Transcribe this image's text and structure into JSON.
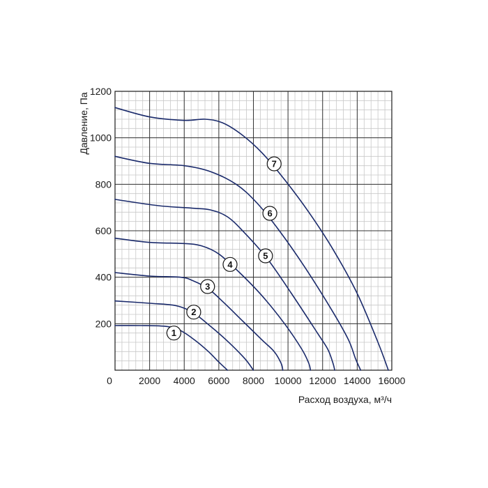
{
  "chart_data": {
    "type": "line",
    "title": "",
    "xlabel": "Расход воздуха, м³/ч",
    "ylabel": "Давление, Па",
    "xlim": [
      0,
      16000
    ],
    "ylim": [
      0,
      1200
    ],
    "x_ticks": [
      "0",
      "2000",
      "4000",
      "6000",
      "8000",
      "10000",
      "12000",
      "14000",
      "16000"
    ],
    "y_ticks": [
      "200",
      "400",
      "600",
      "800",
      "1000",
      "1200"
    ],
    "x_tick_values": [
      0,
      2000,
      4000,
      6000,
      8000,
      10000,
      12000,
      14000,
      16000
    ],
    "y_tick_values": [
      200,
      400,
      600,
      800,
      1000,
      1200
    ],
    "grid": true,
    "minor_grid": true,
    "legend": "none",
    "line_color": "#1a2a6b",
    "grid_major_color": "#333333",
    "grid_minor_color": "#c8c8c8",
    "series": [
      {
        "name": "1",
        "label_point": [
          3400,
          160
        ],
        "x": [
          0,
          1500,
          3000,
          3800,
          4600,
          5400,
          6000,
          6500
        ],
        "y": [
          192,
          192,
          188,
          170,
          130,
          80,
          35,
          0
        ]
      },
      {
        "name": "2",
        "label_point": [
          4550,
          250
        ],
        "x": [
          0,
          2000,
          3500,
          4500,
          5500,
          6500,
          7500,
          8000
        ],
        "y": [
          298,
          288,
          278,
          248,
          190,
          125,
          50,
          0
        ]
      },
      {
        "name": "3",
        "label_point": [
          5350,
          360
        ],
        "x": [
          0,
          2000,
          3800,
          4500,
          5400,
          6300,
          7400,
          8500,
          9200,
          9600,
          9700
        ],
        "y": [
          420,
          405,
          400,
          385,
          350,
          290,
          210,
          130,
          80,
          30,
          0
        ]
      },
      {
        "name": "4",
        "label_point": [
          6650,
          455
        ],
        "x": [
          0,
          2000,
          4000,
          5000,
          6000,
          7200,
          8500,
          9800,
          10800,
          11200,
          11300
        ],
        "y": [
          568,
          550,
          545,
          535,
          500,
          420,
          320,
          200,
          90,
          30,
          0
        ]
      },
      {
        "name": "5",
        "label_point": [
          8700,
          492
        ],
        "x": [
          0,
          2500,
          4500,
          5500,
          6500,
          7500,
          8800,
          10200,
          11700,
          12300,
          12600,
          12700
        ],
        "y": [
          735,
          708,
          697,
          690,
          660,
          590,
          480,
          330,
          160,
          90,
          30,
          0
        ]
      },
      {
        "name": "6",
        "label_point": [
          8950,
          675
        ],
        "x": [
          0,
          2000,
          4000,
          5500,
          7000,
          8200,
          9500,
          11000,
          12600,
          13500,
          13900,
          14200
        ],
        "y": [
          920,
          890,
          880,
          855,
          800,
          720,
          600,
          440,
          250,
          130,
          50,
          0
        ]
      },
      {
        "name": "7",
        "label_point": [
          9200,
          888
        ],
        "x": [
          0,
          2000,
          4000,
          5200,
          6200,
          7300,
          8500,
          9800,
          11200,
          12600,
          14000,
          15200,
          15800
        ],
        "y": [
          1130,
          1090,
          1075,
          1080,
          1065,
          1015,
          935,
          820,
          680,
          520,
          330,
          120,
          0
        ]
      }
    ]
  }
}
